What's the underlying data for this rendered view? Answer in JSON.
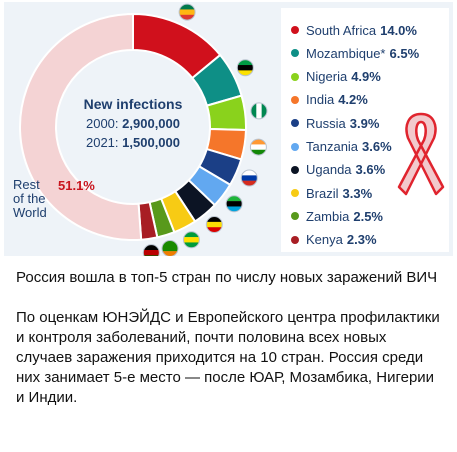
{
  "chart_data": {
    "type": "pie",
    "style": "donut",
    "center": {
      "title": "New infections",
      "line1_year": "2000:",
      "line1_value": "2,900,000",
      "line2_year": "2021:",
      "line2_value": "1,500,000"
    },
    "slices": [
      {
        "label": "South Africa",
        "value": 14.0,
        "display": "14.0%",
        "color": "#d0101c",
        "flag": "south-africa-flag"
      },
      {
        "label": "Mozambique*",
        "value": 6.5,
        "display": "6.5%",
        "color": "#0e8f86",
        "flag": "mozambique-flag"
      },
      {
        "label": "Nigeria",
        "value": 4.9,
        "display": "4.9%",
        "color": "#8ad21c",
        "flag": "nigeria-flag"
      },
      {
        "label": "India",
        "value": 4.2,
        "display": "4.2%",
        "color": "#f5762a",
        "flag": "india-flag"
      },
      {
        "label": "Russia",
        "value": 3.9,
        "display": "3.9%",
        "color": "#1b3f86",
        "flag": "russia-flag"
      },
      {
        "label": "Tanzania",
        "value": 3.6,
        "display": "3.6%",
        "color": "#62a8f0",
        "flag": "tanzania-flag"
      },
      {
        "label": "Uganda",
        "value": 3.6,
        "display": "3.6%",
        "color": "#0c1424",
        "flag": "uganda-flag"
      },
      {
        "label": "Brazil",
        "value": 3.3,
        "display": "3.3%",
        "color": "#f7cb14",
        "flag": "brazil-flag"
      },
      {
        "label": "Zambia",
        "value": 2.5,
        "display": "2.5%",
        "color": "#58991b",
        "flag": "zambia-flag"
      },
      {
        "label": "Kenya",
        "value": 2.3,
        "display": "2.3%",
        "color": "#a81e24",
        "flag": "kenya-flag"
      },
      {
        "label": "Rest of the World",
        "value": 51.1,
        "display": "51.1%",
        "color": "#f4d3d4"
      }
    ],
    "rest_label_lines": [
      "Rest",
      "of the",
      "World"
    ],
    "rest_value_color": "#c9141d",
    "legend_placement": "right",
    "decoration": "red-ribbon-icon"
  },
  "caption": {
    "headline": "Россия вошла в топ-5 стран по числу новых заражений ВИЧ",
    "body": "По оценкам ЮНЭЙДС и Европейского центра профилактики и контроля заболеваний, почти половина всех новых случаев заражения приходится на 10 стран. Россия среди них занимает 5-е место — после ЮАР, Мозамбика, Нигерии и Индии."
  }
}
